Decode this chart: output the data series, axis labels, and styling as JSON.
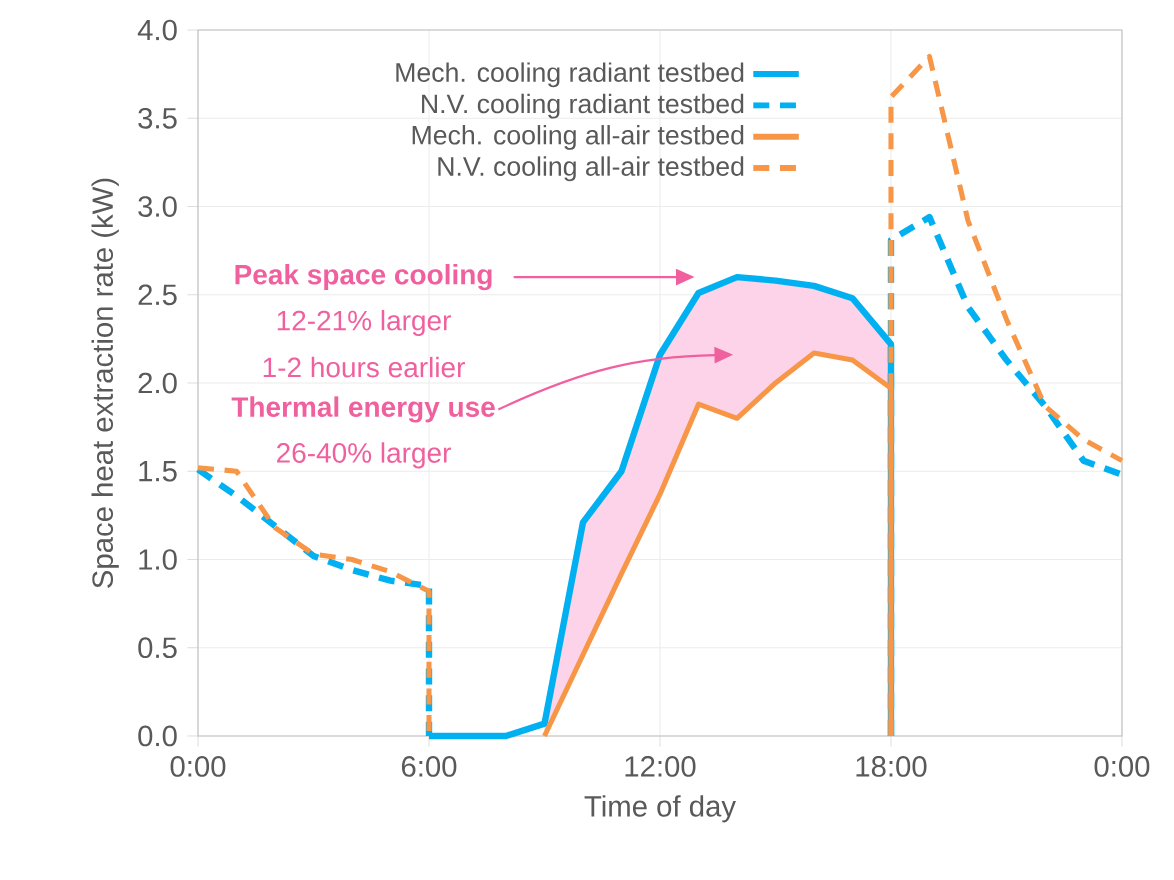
{
  "chart_data": {
    "type": "line",
    "xlabel": "Time of day",
    "ylabel": "Space heat extraction rate (kW)",
    "xlim": [
      0,
      24
    ],
    "xticks": [
      {
        "value": 0,
        "label": "0:00"
      },
      {
        "value": 6,
        "label": "6:00"
      },
      {
        "value": 12,
        "label": "12:00"
      },
      {
        "value": 18,
        "label": "18:00"
      },
      {
        "value": 24,
        "label": "0:00"
      }
    ],
    "ylim": [
      0,
      4
    ],
    "yticks": [
      {
        "value": 0,
        "label": "0.0"
      },
      {
        "value": 0.5,
        "label": "0.5"
      },
      {
        "value": 1,
        "label": "1.0"
      },
      {
        "value": 1.5,
        "label": "1.5"
      },
      {
        "value": 2,
        "label": "2.0"
      },
      {
        "value": 2.5,
        "label": "2.5"
      },
      {
        "value": 3,
        "label": "3.0"
      },
      {
        "value": 3.5,
        "label": "3.5"
      },
      {
        "value": 4,
        "label": "4.0"
      }
    ],
    "grid": true,
    "legend": "top",
    "series": [
      {
        "name": "Mech. cooling radiant testbed",
        "color": "#00b0f0",
        "line_style": "solid",
        "x": [
          6,
          7,
          8,
          9,
          10,
          11,
          12,
          13,
          14,
          15,
          16,
          17,
          18,
          18
        ],
        "values": [
          0,
          0,
          0,
          0.07,
          1.21,
          1.5,
          2.16,
          2.51,
          2.6,
          2.58,
          2.55,
          2.48,
          2.22,
          0
        ],
        "lower": [
          null,
          null,
          null,
          0,
          0.46,
          0.92,
          1.37,
          1.88,
          1.8,
          2.0,
          2.17,
          2.13,
          1.97,
          null
        ],
        "upper": [
          null,
          null,
          null,
          0.07,
          1.21,
          1.5,
          2.16,
          2.51,
          2.6,
          2.58,
          2.55,
          2.48,
          2.22,
          null
        ]
      },
      {
        "name": "N.V. cooling radiant testbed",
        "color": "#00b0f0",
        "line_style": "dashed",
        "x": [
          0,
          1,
          2,
          3,
          4,
          5,
          6,
          6,
          12,
          18,
          18,
          19,
          20,
          21,
          22,
          23,
          24
        ],
        "values": [
          1.51,
          1.36,
          1.19,
          1.02,
          0.94,
          0.88,
          0.85,
          0,
          null,
          0,
          2.81,
          2.94,
          2.43,
          2.13,
          1.87,
          1.56,
          1.48
        ]
      },
      {
        "name": "Mech. cooling all-air testbed",
        "color": "#f79646",
        "line_style": "solid",
        "x": [
          9,
          10,
          11,
          12,
          13,
          14,
          15,
          16,
          17,
          18,
          18
        ],
        "values": [
          0,
          0.46,
          0.92,
          1.37,
          1.88,
          1.8,
          2.0,
          2.17,
          2.13,
          1.97,
          0
        ]
      },
      {
        "name": "N.V. cooling all-air testbed",
        "color": "#f79646",
        "line_style": "dashed",
        "x": [
          0,
          1,
          2,
          3,
          4,
          5,
          6,
          6,
          12,
          18,
          18,
          19,
          20,
          21,
          22,
          23,
          24
        ],
        "values": [
          1.52,
          1.5,
          1.18,
          1.03,
          1.0,
          0.93,
          0.82,
          0,
          null,
          0,
          3.62,
          3.85,
          2.92,
          2.36,
          1.87,
          1.68,
          1.56
        ]
      }
    ],
    "annotations": [
      "**Peak space cooling**",
      "12-21% larger",
      "1-2 hours earlier",
      "**Thermal energy use**",
      "26-40% larger"
    ]
  }
}
